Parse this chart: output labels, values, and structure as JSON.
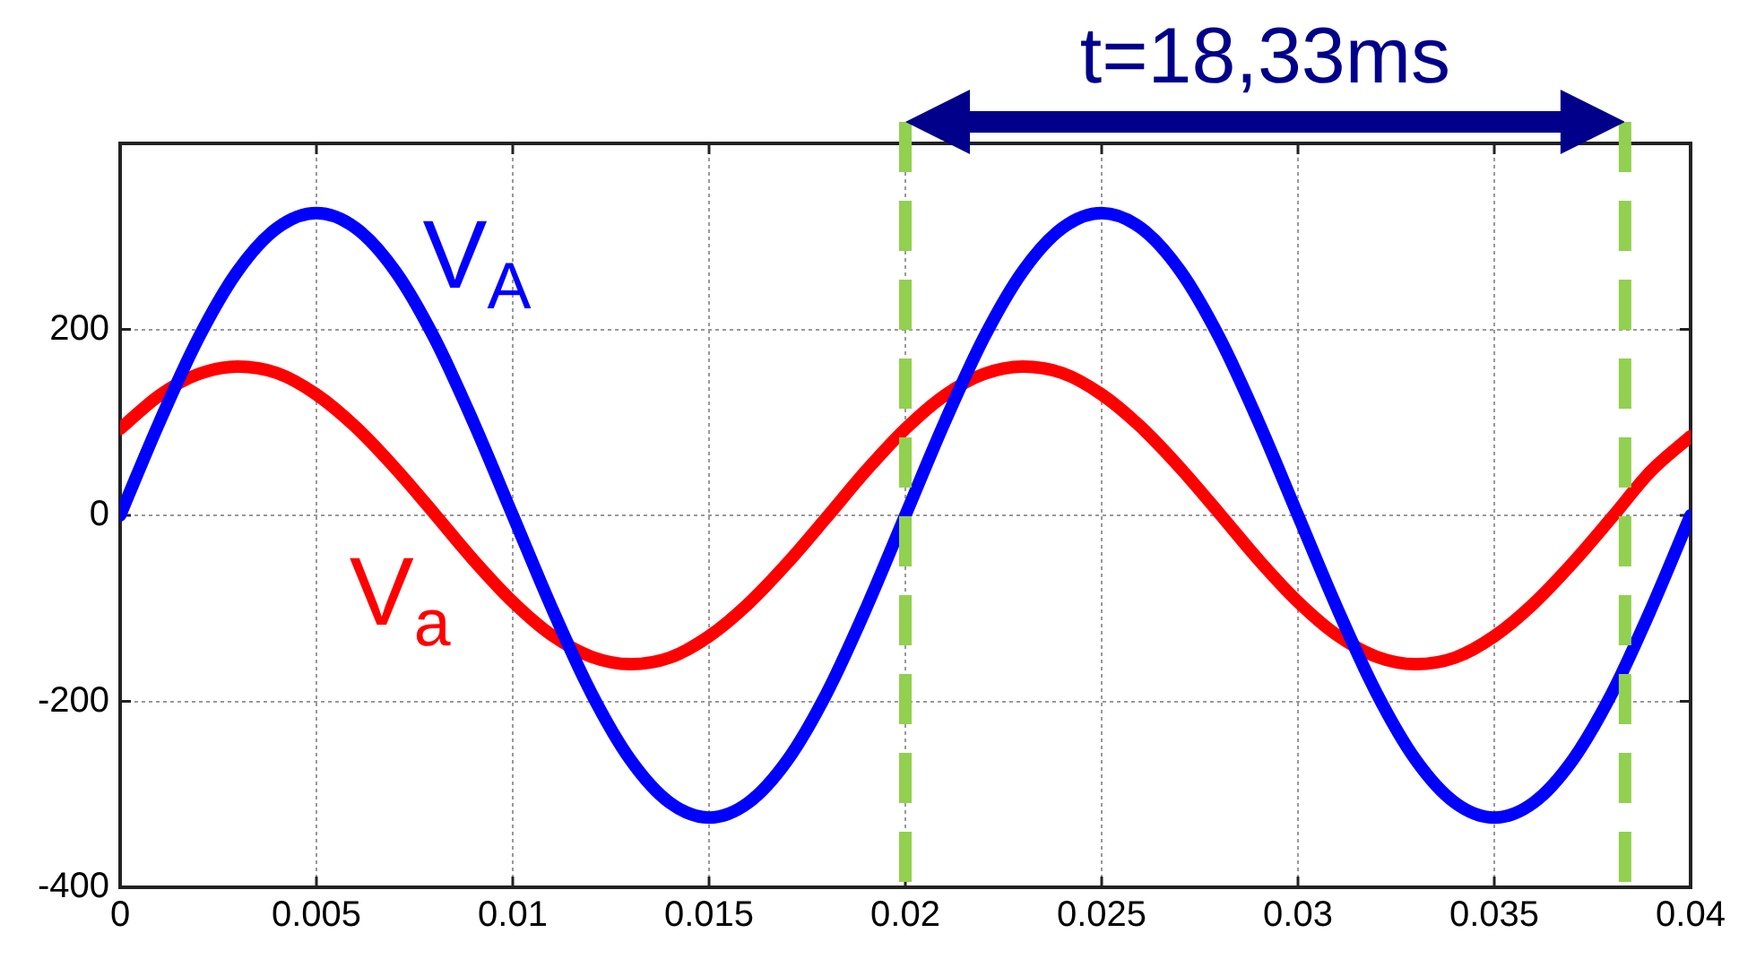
{
  "chart_data": {
    "type": "line",
    "x": [
      0,
      0.001,
      0.002,
      0.003,
      0.004,
      0.005,
      0.006,
      0.007,
      0.008,
      0.009,
      0.01,
      0.011,
      0.012,
      0.013,
      0.014,
      0.015,
      0.016,
      0.017,
      0.018,
      0.019,
      0.02,
      0.021,
      0.022,
      0.023,
      0.024,
      0.025,
      0.026,
      0.027,
      0.028,
      0.029,
      0.03,
      0.031,
      0.032,
      0.033,
      0.034,
      0.035,
      0.036,
      0.037,
      0.038,
      0.039,
      0.04
    ],
    "series": [
      {
        "name": "V$_{A}$",
        "color": "#0000ff",
        "values": [
          0,
          100,
          191,
          263,
          309,
          325,
          309,
          263,
          191,
          100,
          0,
          -100,
          -191,
          -263,
          -309,
          -325,
          -309,
          -263,
          -191,
          -100,
          0,
          100,
          191,
          263,
          309,
          325,
          309,
          263,
          191,
          100,
          0,
          -100,
          -191,
          -263,
          -309,
          -325,
          -309,
          -263,
          -191,
          -100,
          0
        ]
      },
      {
        "name": "V$_{a}$",
        "color": "#ff0000",
        "values": [
          93,
          129,
          152,
          160,
          153,
          130,
          95,
          51,
          2,
          -48,
          -93,
          -129,
          -152,
          -160,
          -153,
          -130,
          -95,
          -51,
          -2,
          48,
          93,
          129,
          152,
          160,
          153,
          130,
          95,
          51,
          2,
          -48,
          -93,
          -129,
          -152,
          -160,
          -153,
          -130,
          -95,
          -51,
          -2,
          48,
          85
        ]
      }
    ],
    "xlim": [
      0,
      0.04
    ],
    "xticks": [
      0,
      0.005,
      0.01,
      0.015,
      0.02,
      0.025,
      0.03,
      0.035,
      0.04
    ],
    "ylim": [
      -400,
      400
    ],
    "yticks": [
      -400,
      -200,
      0,
      200
    ],
    "grid": true,
    "marker": "none",
    "line_style": "solid",
    "legend": false,
    "ref_lines": [
      {
        "axis": "x",
        "value": 0.02,
        "color": "#92d050",
        "line_style": "dashed"
      },
      {
        "axis": "x",
        "value": 0.03833,
        "color": "#92d050",
        "line_style": "dashed"
      }
    ],
    "annotations": [
      "t=18,33ms"
    ]
  }
}
